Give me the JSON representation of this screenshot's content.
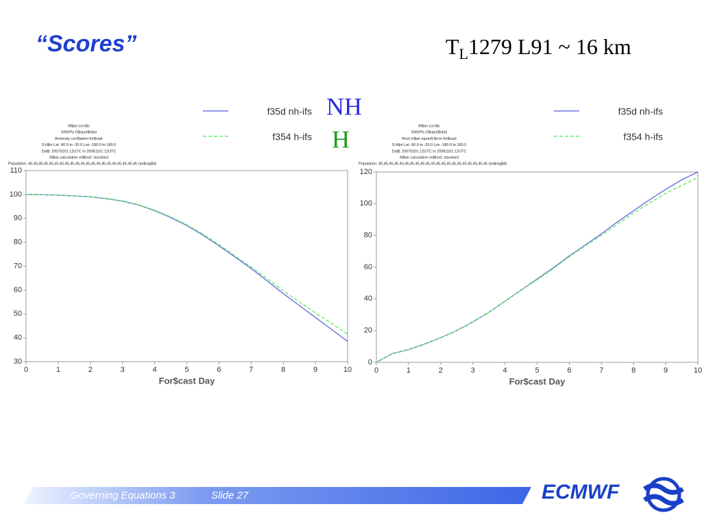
{
  "slide": {
    "title": "“Scores”",
    "resolution": {
      "base": "T",
      "sub": "L",
      "rest": "1279 L91 ~ 16 km"
    },
    "hemisphere_labels": [
      "NH",
      "H"
    ],
    "footer": {
      "course": "Governing Equations 3",
      "slide": "Slide 27",
      "brand": "ECMWF"
    }
  },
  "chart_data": [
    {
      "type": "line",
      "subtitle": [
        "M$an curv$s",
        "500hPa G$opot$ntial",
        "Anomaly corr$lation for$cast",
        "S.h$m  Lat -90.0 to -20.0 Lon -180.0 to  180.0",
        "Dat$: 20070201 12UTC to 20081101 12UTC",
        "M$an calculation m$thod: standard",
        "Population: 45,45,45,45,45,45,45,45,45,45,45,45,45,45,45,45,45,45,45,45,45 (av$rag$d)"
      ],
      "xlabel": "For$cast Day",
      "x": [
        0,
        0.5,
        1,
        1.5,
        2,
        2.5,
        3,
        3.5,
        4,
        4.5,
        5,
        5.5,
        6,
        6.5,
        7,
        7.5,
        8,
        8.5,
        9,
        9.5,
        10
      ],
      "series": [
        {
          "name": "f35d nh-ifs",
          "color": "#7474e4",
          "values": [
            100,
            99.9,
            99.7,
            99.4,
            99,
            98.2,
            97.2,
            95.6,
            93.2,
            90.3,
            87,
            83,
            78.5,
            73.8,
            69,
            63.8,
            58.5,
            53.5,
            48.5,
            43.5,
            38.5
          ]
        },
        {
          "name": "f354 h-ifs",
          "color": "#66ee66",
          "dashed": true,
          "values": [
            100,
            99.9,
            99.7,
            99.4,
            99,
            98.3,
            97.3,
            95.7,
            93.4,
            90.6,
            87.3,
            83.4,
            79,
            74.3,
            69.6,
            64.7,
            59.7,
            55,
            50.5,
            46,
            41.5
          ]
        }
      ],
      "xlim": [
        0,
        10
      ],
      "xticks": [
        0,
        1,
        2,
        3,
        4,
        5,
        6,
        7,
        8,
        9,
        10
      ],
      "ylim": [
        30,
        110
      ],
      "yticks": [
        30,
        40,
        50,
        60,
        70,
        80,
        90,
        100,
        110
      ]
    },
    {
      "type": "line",
      "subtitle": [
        "M$an curv$s",
        "500hPa G$opot$ntial",
        "Root m$an squar$ $rror for$cast",
        "S.h$m  Lat -90.0 to -20.0 Lon -180.0 to  180.0",
        "Dat$: 20070201 12UTC to 20081101 12UTC",
        "M$an calculation m$thod: standard",
        "Population: 45,45,45,45,45,45,45,45,45,45,45,45,45,45,45,45,45,45,45,45,45 (av$rag$d)"
      ],
      "xlabel": "For$cast Day",
      "x": [
        0,
        0.5,
        1,
        1.5,
        2,
        2.5,
        3,
        3.5,
        4,
        4.5,
        5,
        5.5,
        6,
        6.5,
        7,
        7.5,
        8,
        8.5,
        9,
        9.5,
        10
      ],
      "series": [
        {
          "name": "f35d nh-ifs",
          "color": "#7474e4",
          "values": [
            0,
            5.5,
            8,
            11.5,
            15.5,
            20,
            25.5,
            31.5,
            38.5,
            45.5,
            52.5,
            59.5,
            67,
            74,
            81,
            88.5,
            95.5,
            102.5,
            109,
            115,
            120
          ]
        },
        {
          "name": "f354 h-ifs",
          "color": "#66ee66",
          "dashed": true,
          "values": [
            0,
            5.5,
            8,
            11.5,
            15.5,
            20,
            25.5,
            31.5,
            38.5,
            45.5,
            52,
            59,
            66.5,
            73.5,
            80,
            87,
            94,
            100.5,
            106.5,
            111.5,
            116.5
          ]
        }
      ],
      "xlim": [
        0,
        10
      ],
      "xticks": [
        0,
        1,
        2,
        3,
        4,
        5,
        6,
        7,
        8,
        9,
        10
      ],
      "ylim": [
        0,
        120
      ],
      "yticks": [
        0,
        20,
        40,
        60,
        80,
        100,
        120
      ]
    }
  ]
}
